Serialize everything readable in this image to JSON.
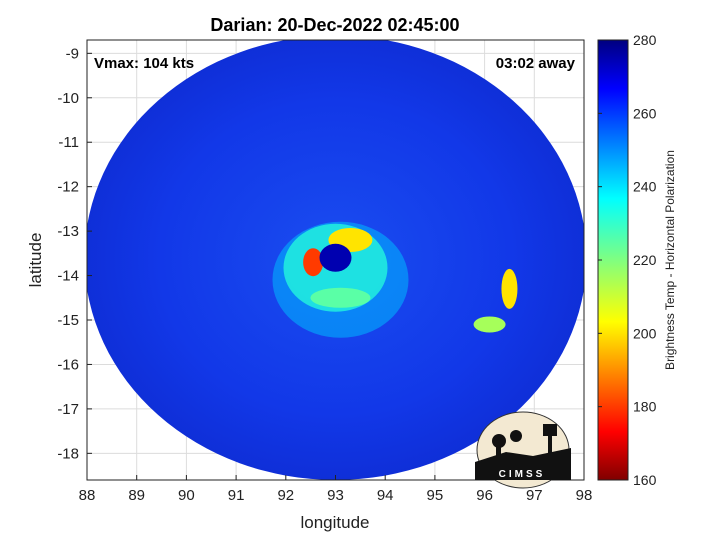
{
  "chart_data": {
    "type": "heatmap",
    "title": "Darian: 20-Dec-2022 02:45:00",
    "xlabel": "longitude",
    "ylabel": "latitude",
    "xlim": [
      88,
      98
    ],
    "ylim": [
      -18.6,
      -8.7
    ],
    "xticks": [
      "88",
      "89",
      "90",
      "91",
      "92",
      "93",
      "94",
      "95",
      "96",
      "97",
      "98"
    ],
    "yticks": [
      "-9",
      "-10",
      "-11",
      "-12",
      "-13",
      "-14",
      "-15",
      "-16",
      "-17",
      "-18"
    ],
    "grid": true,
    "annotations": {
      "vmax": "Vmax: 104 kts",
      "offset": "03:02 away"
    },
    "colorbar": {
      "label": "Brightness Temp - Horizontal Polarization",
      "range": [
        160,
        280
      ],
      "ticks": [
        "160",
        "180",
        "200",
        "220",
        "240",
        "260",
        "280"
      ],
      "colormap": "jet"
    },
    "storm_center": {
      "lon": 93.0,
      "lat": -13.6
    },
    "swath": {
      "center_lon": 93.0,
      "center_lat": -13.6,
      "radius_lon": 5.05,
      "radius_lat": 5.0
    },
    "features": [
      {
        "name": "eyewall-west",
        "lon": 92.55,
        "lat": -13.7,
        "value": 180
      },
      {
        "name": "eyewall-north",
        "lon": 93.3,
        "lat": -13.2,
        "value": 200
      },
      {
        "name": "eye",
        "lon": 93.0,
        "lat": -13.6,
        "value": 275
      },
      {
        "name": "rainband-east",
        "lon": 96.5,
        "lat": -14.3,
        "value": 200
      },
      {
        "name": "rainband-southeast",
        "lon": 96.1,
        "lat": -15.1,
        "value": 215
      },
      {
        "name": "inner-ring",
        "lon": 93.1,
        "lat": -14.5,
        "value": 225
      }
    ]
  },
  "logo": {
    "text": "CIMSS"
  }
}
